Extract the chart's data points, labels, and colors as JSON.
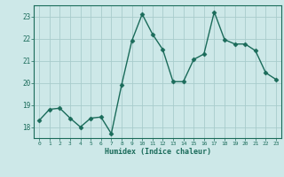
{
  "xlabel": "Humidex (Indice chaleur)",
  "x": [
    0,
    1,
    2,
    3,
    4,
    5,
    6,
    7,
    8,
    9,
    10,
    11,
    12,
    13,
    14,
    15,
    16,
    17,
    18,
    19,
    20,
    21,
    22,
    23
  ],
  "y": [
    18.3,
    18.8,
    18.85,
    18.4,
    18.0,
    18.4,
    18.45,
    17.7,
    19.9,
    21.9,
    23.1,
    22.2,
    21.5,
    20.05,
    20.05,
    21.05,
    21.3,
    23.2,
    21.95,
    21.75,
    21.75,
    21.45,
    20.45,
    20.15
  ],
  "line_color": "#1a6b5a",
  "bg_color": "#cde8e8",
  "grid_color": "#a8cccc",
  "tick_color": "#1a6b5a",
  "axis_color": "#1a6b5a",
  "ylim": [
    17.5,
    23.5
  ],
  "yticks": [
    18,
    19,
    20,
    21,
    22,
    23
  ],
  "xlim": [
    -0.5,
    23.5
  ],
  "marker": "D",
  "markersize": 2.5,
  "linewidth": 1.0
}
